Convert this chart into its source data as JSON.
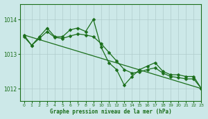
{
  "title": "Graphe pression niveau de la mer (hPa)",
  "bg_color": "#cce8e8",
  "line_color": "#1a6e1a",
  "grid_color": "#b0cccc",
  "xlim": [
    -0.5,
    23
  ],
  "ylim": [
    1011.65,
    1014.45
  ],
  "yticks": [
    1012,
    1013,
    1014
  ],
  "xticks": [
    0,
    1,
    2,
    3,
    4,
    5,
    6,
    7,
    8,
    9,
    10,
    11,
    12,
    13,
    14,
    15,
    16,
    17,
    18,
    19,
    20,
    21,
    22,
    23
  ],
  "series1_x": [
    0,
    1,
    2,
    3,
    4,
    5,
    6,
    7,
    8,
    9,
    10,
    11,
    12,
    13,
    14,
    15,
    16,
    17,
    18,
    19,
    20,
    21,
    22,
    23
  ],
  "series1_y": [
    1013.55,
    1013.25,
    1013.5,
    1013.75,
    1013.5,
    1013.5,
    1013.7,
    1013.75,
    1013.65,
    1014.0,
    1013.2,
    1012.75,
    1012.55,
    1012.1,
    1012.35,
    1012.55,
    1012.65,
    1012.75,
    1012.5,
    1012.4,
    1012.4,
    1012.35,
    1012.35,
    1012.0
  ],
  "series2_x": [
    0,
    23
  ],
  "series2_y": [
    1013.55,
    1012.0
  ],
  "series3_x": [
    0,
    1,
    2,
    3,
    4,
    5,
    6,
    7,
    8,
    9,
    10,
    11,
    12,
    13,
    14,
    15,
    16,
    17,
    18,
    19,
    20,
    21,
    22,
    23
  ],
  "series3_y": [
    1013.5,
    1013.25,
    1013.45,
    1013.65,
    1013.48,
    1013.45,
    1013.52,
    1013.58,
    1013.55,
    1013.5,
    1013.3,
    1013.05,
    1012.8,
    1012.55,
    1012.45,
    1012.48,
    1012.55,
    1012.6,
    1012.45,
    1012.35,
    1012.32,
    1012.28,
    1012.28,
    1012.0
  ]
}
